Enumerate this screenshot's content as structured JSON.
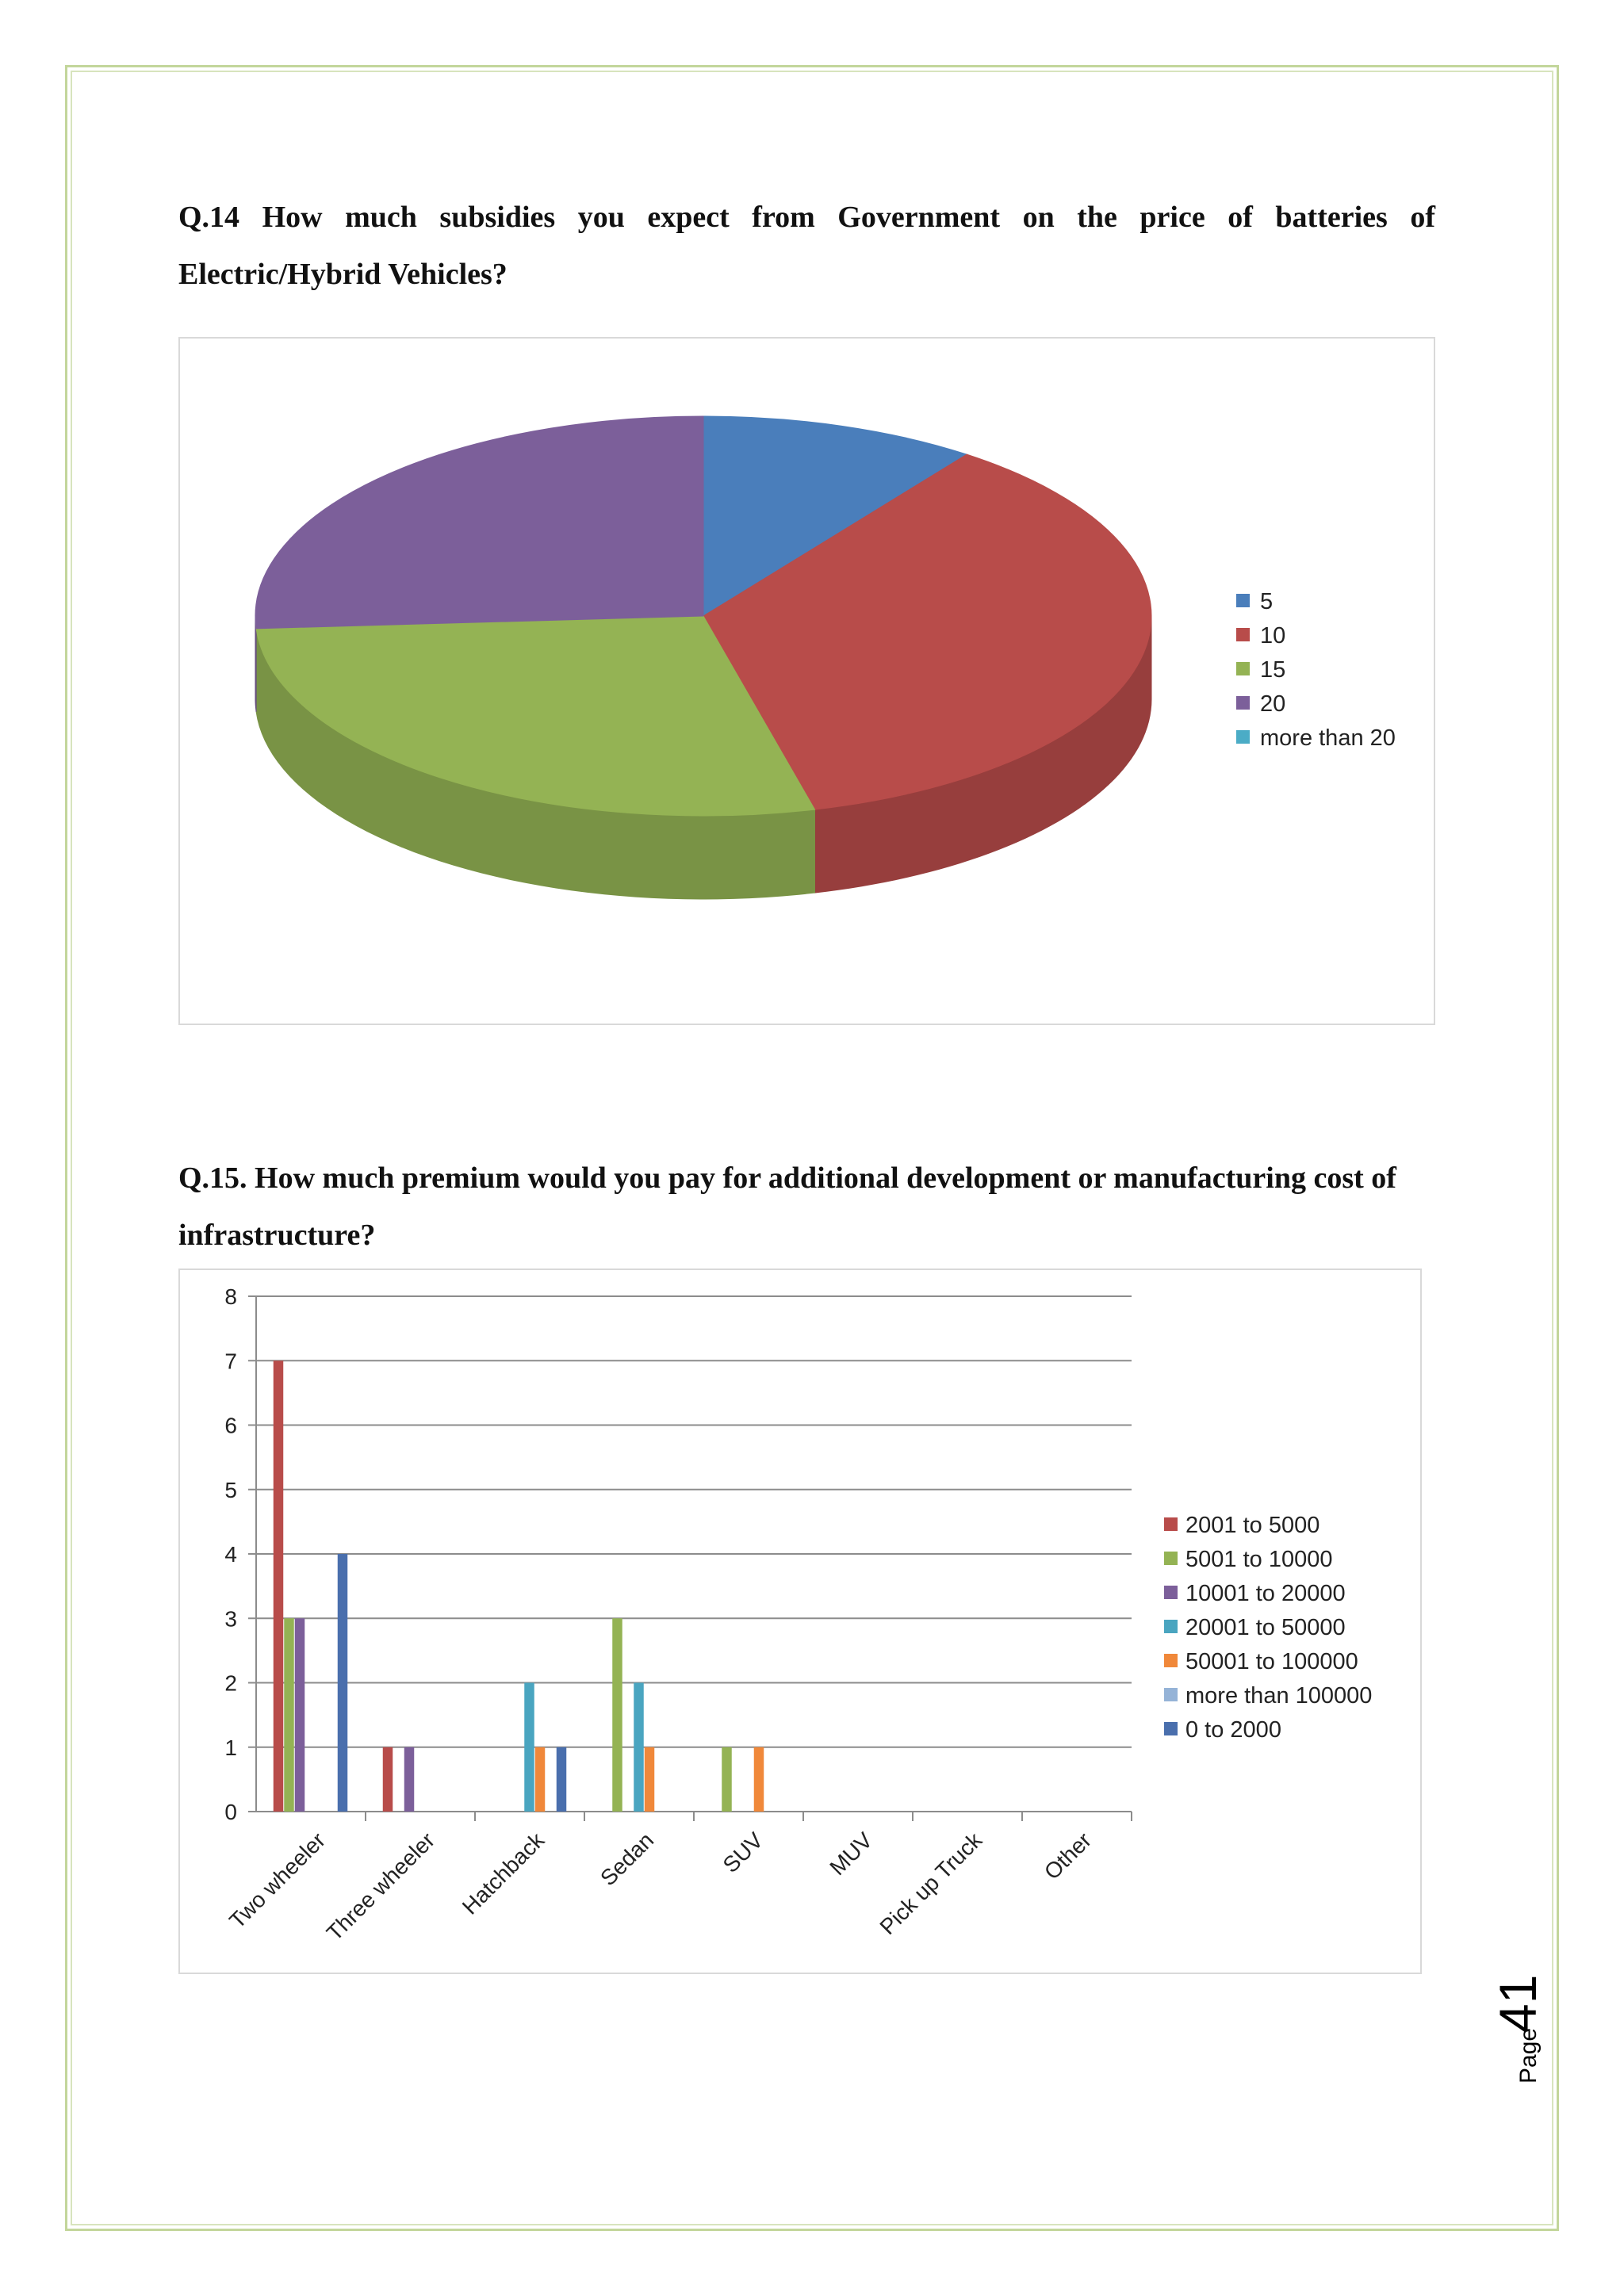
{
  "questions": {
    "q14": "Q.14 How much subsidies you expect from Government on the price of batteries of Electric/Hybrid Vehicles?",
    "q15": "Q.15. How much premium would you pay for additional development or manufacturing cost of infrastructure?"
  },
  "page": {
    "label": "Page",
    "number": "41"
  },
  "chart_data": [
    {
      "type": "pie",
      "style": "3d",
      "title": "",
      "slices": [
        {
          "label": "5",
          "value": 10,
          "color": "#4a7ebb"
        },
        {
          "label": "10",
          "value": 36,
          "color": "#b84c4a"
        },
        {
          "label": "15",
          "value": 28,
          "color": "#94b354"
        },
        {
          "label": "20",
          "value": 26,
          "color": "#7c5f9a"
        },
        {
          "label": "more than 20",
          "value": 0,
          "color": "#4bacc6"
        }
      ],
      "legend_position": "right"
    },
    {
      "type": "bar",
      "title": "",
      "xlabel": "",
      "ylabel": "",
      "ylim": [
        0,
        8
      ],
      "yticks": [
        0,
        1,
        2,
        3,
        4,
        5,
        6,
        7,
        8
      ],
      "grid": true,
      "legend_position": "right",
      "categories": [
        "Two wheeler",
        "Three wheeler",
        "Hatchback",
        "Sedan",
        "SUV",
        "MUV",
        "Pick up Truck",
        "Other"
      ],
      "series": [
        {
          "name": "2001 to 5000",
          "color": "#b84c4a",
          "values": [
            7,
            1,
            0,
            0,
            0,
            0,
            0,
            0
          ]
        },
        {
          "name": "5001 to 10000",
          "color": "#94b354",
          "values": [
            3,
            0,
            0,
            3,
            1,
            0,
            0,
            0
          ]
        },
        {
          "name": "10001 to 20000",
          "color": "#7c5f9a",
          "values": [
            3,
            1,
            0,
            0,
            0,
            0,
            0,
            0
          ]
        },
        {
          "name": "20001 to 50000",
          "color": "#4aa5c0",
          "values": [
            0,
            0,
            2,
            2,
            0,
            0,
            0,
            0
          ]
        },
        {
          "name": "50001 to 100000",
          "color": "#f0883a",
          "values": [
            0,
            0,
            1,
            1,
            1,
            0,
            0,
            0
          ]
        },
        {
          "name": "more than 100000",
          "color": "#95b3d7",
          "values": [
            0,
            0,
            0,
            0,
            0,
            0,
            0,
            0
          ]
        },
        {
          "name": "0 to 2000",
          "color": "#4a6fad",
          "values": [
            4,
            0,
            1,
            0,
            0,
            0,
            0,
            0
          ]
        }
      ]
    }
  ]
}
